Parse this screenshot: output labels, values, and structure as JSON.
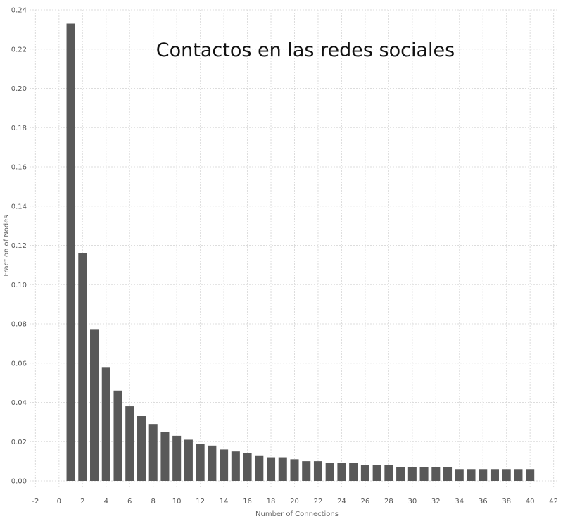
{
  "chart_data": {
    "type": "bar",
    "title": "Contactos en las redes sociales",
    "xlabel": "Number of Connections",
    "ylabel": "Fraction of Nodes",
    "xlim": [
      -2.5,
      42.5
    ],
    "ylim": [
      0,
      0.24
    ],
    "xticks": [
      -2,
      0,
      2,
      4,
      6,
      8,
      10,
      12,
      14,
      16,
      18,
      20,
      22,
      24,
      26,
      28,
      30,
      32,
      34,
      36,
      38,
      40,
      42
    ],
    "yticks": [
      "0.00",
      "0.02",
      "0.04",
      "0.06",
      "0.08",
      "0.10",
      "0.12",
      "0.14",
      "0.16",
      "0.18",
      "0.20",
      "0.22",
      "0.24"
    ],
    "grid": true,
    "x": [
      1,
      2,
      3,
      4,
      5,
      6,
      7,
      8,
      9,
      10,
      11,
      12,
      13,
      14,
      15,
      16,
      17,
      18,
      19,
      20,
      21,
      22,
      23,
      24,
      25,
      26,
      27,
      28,
      29,
      30,
      31,
      32,
      33,
      34,
      35,
      36,
      37,
      38,
      39,
      40
    ],
    "values": [
      0.233,
      0.116,
      0.077,
      0.058,
      0.046,
      0.038,
      0.033,
      0.029,
      0.025,
      0.023,
      0.021,
      0.019,
      0.018,
      0.016,
      0.015,
      0.014,
      0.013,
      0.012,
      0.012,
      0.011,
      0.01,
      0.01,
      0.009,
      0.009,
      0.009,
      0.008,
      0.008,
      0.008,
      0.007,
      0.007,
      0.007,
      0.007,
      0.007,
      0.006,
      0.006,
      0.006,
      0.006,
      0.006,
      0.006,
      0.006
    ],
    "bar_color": "#595959"
  }
}
